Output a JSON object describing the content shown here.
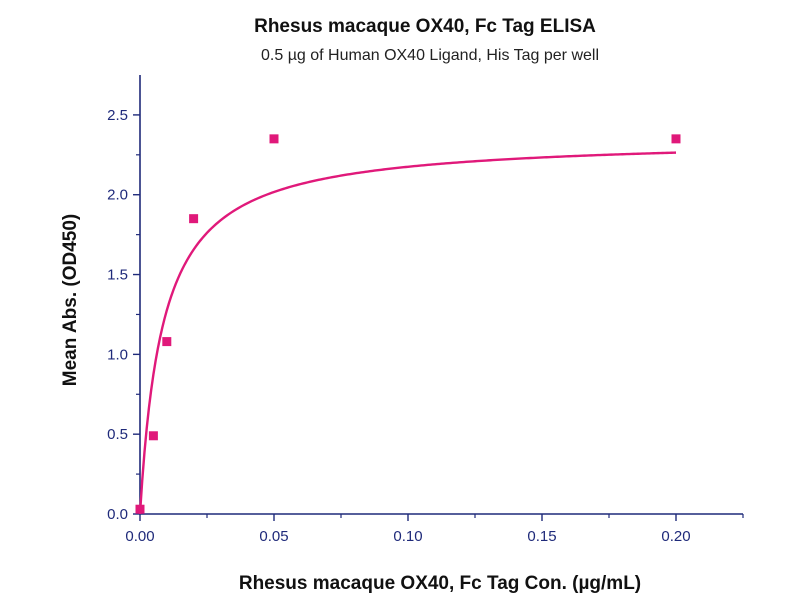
{
  "chart_data": {
    "type": "scatter",
    "title": "Rhesus macaque OX40, Fc Tag ELISA",
    "subtitle": "0.5 µg of Human OX40 Ligand, His Tag per well",
    "xlabel": "Rhesus macaque OX40, Fc Tag Con. (µg/mL)",
    "ylabel": "Mean Abs. (OD450)",
    "xlim": [
      0,
      0.225
    ],
    "ylim": [
      0,
      2.75
    ],
    "x_ticks": [
      0.0,
      0.05,
      0.1,
      0.15,
      0.2
    ],
    "x_tick_labels": [
      "0.00",
      "0.05",
      "0.10",
      "0.15",
      "0.20"
    ],
    "y_ticks": [
      0.0,
      0.5,
      1.0,
      1.5,
      2.0,
      2.5
    ],
    "y_tick_labels": [
      "0.0",
      "0.5",
      "1.0",
      "1.5",
      "2.0",
      "2.5"
    ],
    "grid": false,
    "series": [
      {
        "color": "#e0197a",
        "marker": "square",
        "points": [
          {
            "x": 0.0,
            "y": 0.03
          },
          {
            "x": 0.005,
            "y": 0.49
          },
          {
            "x": 0.01,
            "y": 1.08
          },
          {
            "x": 0.02,
            "y": 1.85
          },
          {
            "x": 0.05,
            "y": 2.35
          },
          {
            "x": 0.2,
            "y": 2.35
          }
        ],
        "fit": {
          "model": "hyperbolic",
          "top": 2.36,
          "half_max_x": 0.0085
        }
      }
    ],
    "axis_color": "#1f2a7a"
  }
}
